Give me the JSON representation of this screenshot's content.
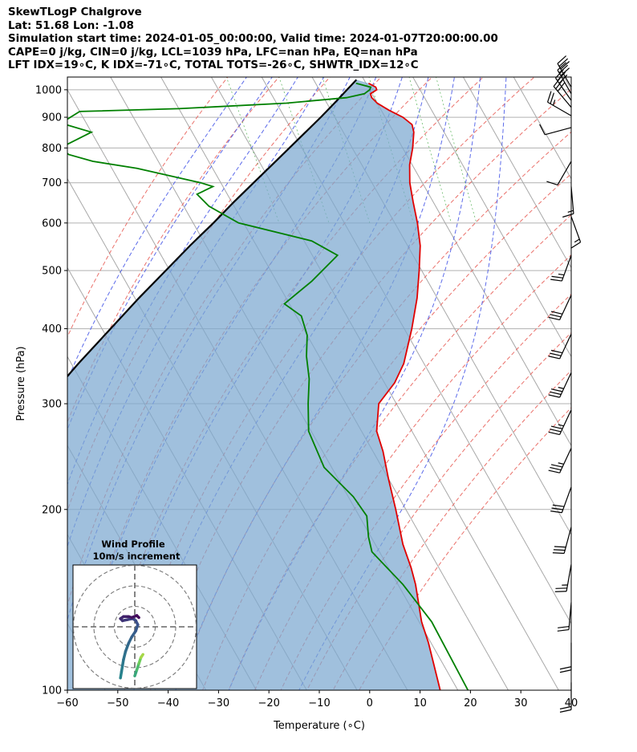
{
  "header": {
    "line1": "SkewTLogP Chalgrove",
    "line2": "Lat: 51.68   Lon: -1.08",
    "line3": "Simulation start time: 2024-01-05_00:00:00, Valid time: 2024-01-07T20:00:00.00",
    "line4": "CAPE=0 j/kg, CIN=0 j/kg, LCL=1039 hPa, LFC=nan hPa, EQ=nan hPa",
    "line5": "LFT IDX=19∘C, K IDX=-71∘C, TOTAL TOTS=-26∘C, SHWTR_IDX=12∘C"
  },
  "chart_data": {
    "type": "skewt-logp",
    "xlabel": "Temperature (∘C)",
    "ylabel": "Pressure (hPa)",
    "xlim": [
      -60,
      40
    ],
    "ylim": [
      1050,
      100
    ],
    "x_ticks": [
      -60,
      -50,
      -40,
      -30,
      -20,
      -10,
      0,
      10,
      20,
      30,
      40
    ],
    "x_tick_labels": [
      "−60",
      "−50",
      "−40",
      "−30",
      "−20",
      "−10",
      "0",
      "10",
      "20",
      "30",
      "40"
    ],
    "y_ticks": [
      100,
      200,
      300,
      400,
      500,
      600,
      700,
      800,
      900,
      1000
    ],
    "y_tick_labels": [
      "100",
      "200",
      "300",
      "400",
      "500",
      "600",
      "700",
      "800",
      "900",
      "1000"
    ],
    "skew_deg_per_log10": 67.5,
    "dry_adiabats_theta_K": [
      243,
      253,
      263,
      273,
      283,
      293,
      303,
      313,
      323,
      333,
      343,
      353,
      363,
      373,
      383,
      393
    ],
    "moist_adiabats_start_C": [
      -20,
      -15,
      -10,
      -5,
      0,
      5,
      10,
      15,
      20,
      25,
      30
    ],
    "mixing_ratios_gkg": [
      0.4,
      1,
      2,
      4,
      7,
      10
    ],
    "temperature": [
      [
        1025,
        0.5
      ],
      [
        1010,
        1.5
      ],
      [
        1000,
        1.4
      ],
      [
        985,
        -0.3
      ],
      [
        970,
        -0.5
      ],
      [
        950,
        0.0
      ],
      [
        925,
        1.5
      ],
      [
        900,
        3.5
      ],
      [
        875,
        4.5
      ],
      [
        850,
        4.0
      ],
      [
        800,
        2.0
      ],
      [
        750,
        -0.5
      ],
      [
        700,
        -2.5
      ],
      [
        650,
        -4.0
      ],
      [
        600,
        -5.5
      ],
      [
        550,
        -7.5
      ],
      [
        500,
        -10.5
      ],
      [
        450,
        -14.0
      ],
      [
        400,
        -18.5
      ],
      [
        350,
        -24.0
      ],
      [
        325,
        -28.0
      ],
      [
        300,
        -33.5
      ],
      [
        270,
        -37.0
      ],
      [
        250,
        -38.0
      ],
      [
        225,
        -40.0
      ],
      [
        200,
        -42.0
      ],
      [
        175,
        -44.5
      ],
      [
        160,
        -45.5
      ],
      [
        150,
        -46.5
      ],
      [
        130,
        -49.5
      ],
      [
        120,
        -50.5
      ],
      [
        100,
        -53.5
      ]
    ],
    "dewpoint": [
      [
        1025,
        -2.0
      ],
      [
        1010,
        0.5
      ],
      [
        1000,
        0.0
      ],
      [
        985,
        -1.5
      ],
      [
        970,
        -5.5
      ],
      [
        950,
        -18.0
      ],
      [
        930,
        -40.0
      ],
      [
        920,
        -60.0
      ],
      [
        880,
        -65.0
      ],
      [
        850,
        -60.0
      ],
      [
        800,
        -68.0
      ],
      [
        780,
        -67.0
      ],
      [
        760,
        -63.0
      ],
      [
        740,
        -55.0
      ],
      [
        700,
        -44.0
      ],
      [
        690,
        -42.0
      ],
      [
        670,
        -46.0
      ],
      [
        640,
        -45.0
      ],
      [
        600,
        -41.0
      ],
      [
        560,
        -28.5
      ],
      [
        530,
        -25.0
      ],
      [
        480,
        -33.0
      ],
      [
        440,
        -41.0
      ],
      [
        420,
        -39.0
      ],
      [
        390,
        -40.0
      ],
      [
        360,
        -42.5
      ],
      [
        330,
        -44.5
      ],
      [
        300,
        -47.5
      ],
      [
        270,
        -50.5
      ],
      [
        235,
        -51.5
      ],
      [
        210,
        -49.0
      ],
      [
        195,
        -48.5
      ],
      [
        180,
        -50.5
      ],
      [
        170,
        -51.5
      ],
      [
        150,
        -49.0
      ],
      [
        130,
        -47.5
      ],
      [
        100,
        -48.0
      ]
    ],
    "parcel": [
      [
        1039,
        -1.5
      ],
      [
        1000,
        -4.5
      ],
      [
        950,
        -8.5
      ],
      [
        900,
        -12.8
      ],
      [
        850,
        -17.5
      ],
      [
        800,
        -22.5
      ],
      [
        750,
        -27.8
      ],
      [
        700,
        -33.5
      ],
      [
        650,
        -39.6
      ],
      [
        600,
        -46.0
      ],
      [
        550,
        -53.2
      ],
      [
        500,
        -60.8
      ],
      [
        450,
        -69.2
      ],
      [
        400,
        -78.3
      ],
      [
        350,
        -88.6
      ],
      [
        300,
        -100.0
      ],
      [
        250,
        -113.3
      ],
      [
        200,
        -128.6
      ],
      [
        150,
        -148.1
      ],
      [
        100,
        -174.6
      ]
    ],
    "wind_barbs": [
      {
        "p": 1010,
        "dir_deg": 330,
        "speed_kt": 30
      },
      {
        "p": 985,
        "dir_deg": 330,
        "speed_kt": 30
      },
      {
        "p": 960,
        "dir_deg": 325,
        "speed_kt": 30
      },
      {
        "p": 935,
        "dir_deg": 320,
        "speed_kt": 30
      },
      {
        "p": 905,
        "dir_deg": 300,
        "speed_kt": 25
      },
      {
        "p": 865,
        "dir_deg": 255,
        "speed_kt": 10
      },
      {
        "p": 760,
        "dir_deg": 210,
        "speed_kt": 10
      },
      {
        "p": 690,
        "dir_deg": 175,
        "speed_kt": 15
      },
      {
        "p": 615,
        "dir_deg": 160,
        "speed_kt": 15
      },
      {
        "p": 530,
        "dir_deg": 200,
        "speed_kt": 25
      },
      {
        "p": 455,
        "dir_deg": 205,
        "speed_kt": 30
      },
      {
        "p": 392,
        "dir_deg": 205,
        "speed_kt": 30
      },
      {
        "p": 338,
        "dir_deg": 205,
        "speed_kt": 35
      },
      {
        "p": 293,
        "dir_deg": 205,
        "speed_kt": 35
      },
      {
        "p": 253,
        "dir_deg": 205,
        "speed_kt": 35
      },
      {
        "p": 218,
        "dir_deg": 200,
        "speed_kt": 30
      },
      {
        "p": 187,
        "dir_deg": 195,
        "speed_kt": 30
      },
      {
        "p": 162,
        "dir_deg": 190,
        "speed_kt": 25
      },
      {
        "p": 140,
        "dir_deg": 185,
        "speed_kt": 20
      },
      {
        "p": 120,
        "dir_deg": 180,
        "speed_kt": 20
      },
      {
        "p": 103,
        "dir_deg": 180,
        "speed_kt": 20
      }
    ],
    "hodograph": {
      "title_line1": "Wind Profile",
      "title_line2": "10m/s increment",
      "ring_step_ms": 10,
      "ring_count": 3,
      "uv_ms": [
        [
          -7.0,
          -25.0
        ],
        [
          -6.5,
          -22.0
        ],
        [
          -6.0,
          -19.0
        ],
        [
          -5.5,
          -16.0
        ],
        [
          -4.5,
          -12.0
        ],
        [
          -3.0,
          -8.0
        ],
        [
          -1.5,
          -5.0
        ],
        [
          0.5,
          -2.0
        ],
        [
          1.5,
          1.0
        ],
        [
          0.5,
          3.0
        ],
        [
          -1.0,
          4.0
        ],
        [
          -3.5,
          3.5
        ],
        [
          -6.0,
          3.0
        ],
        [
          -7.0,
          4.0
        ],
        [
          -5.5,
          5.0
        ],
        [
          -3.0,
          5.0
        ],
        [
          -1.5,
          4.5
        ],
        [
          1.0,
          5.5
        ],
        [
          2.0,
          4.5
        ]
      ],
      "uv_ms_upper": [
        [
          0.0,
          -24.0
        ],
        [
          1.0,
          -21.0
        ],
        [
          2.0,
          -18.0
        ],
        [
          3.0,
          -15.0
        ],
        [
          4.0,
          -13.5
        ]
      ]
    }
  }
}
